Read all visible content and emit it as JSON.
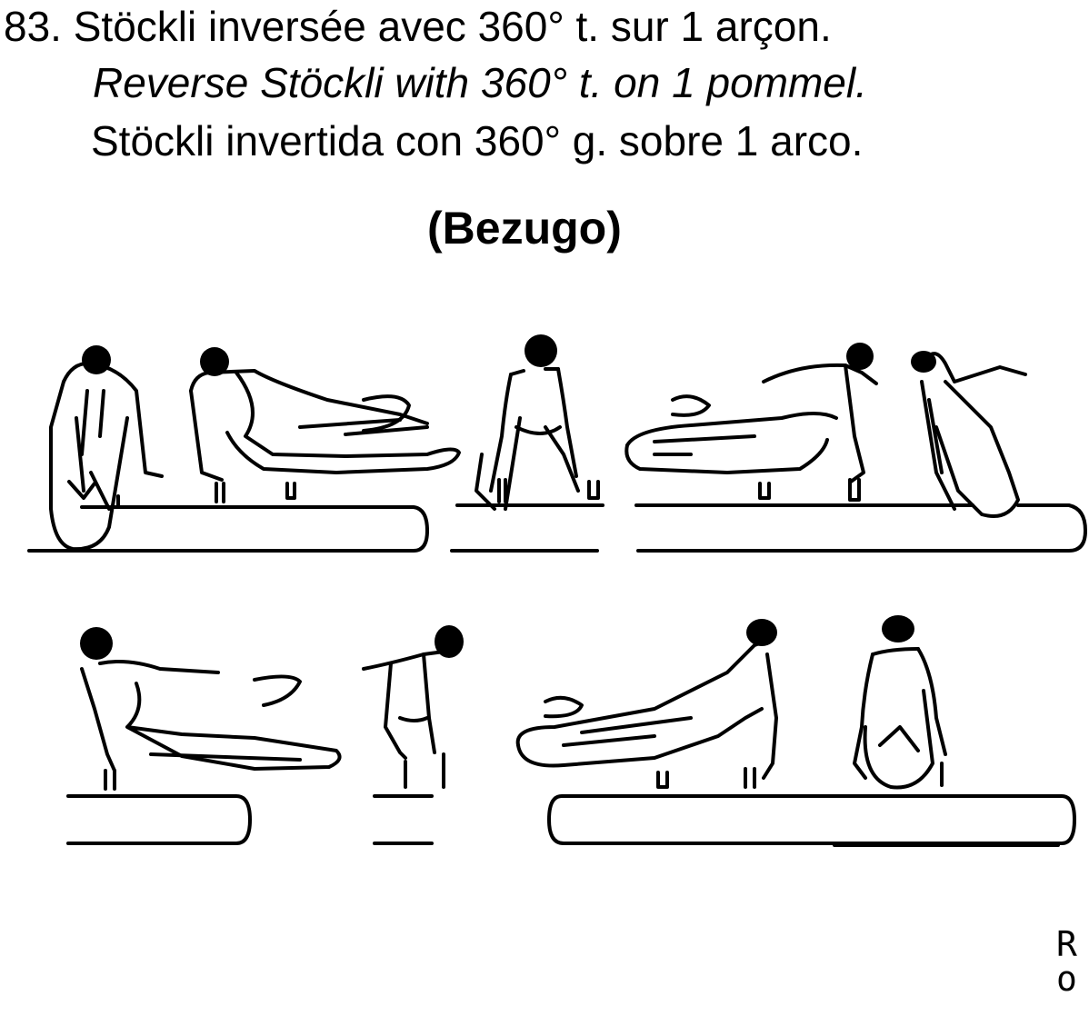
{
  "heading": {
    "french": "83. Stöckli inversée avec 360° t. sur 1 arçon.",
    "english": "Reverse Stöckli with 360° t. on 1 pommel.",
    "spanish": "Stöckli invertida con 360° g. sobre 1 arco."
  },
  "name": "(Bezugo)",
  "corner_mark": {
    "top": "R",
    "bottom": "o"
  },
  "colors": {
    "ink": "#000000",
    "paper": "#ffffff"
  }
}
